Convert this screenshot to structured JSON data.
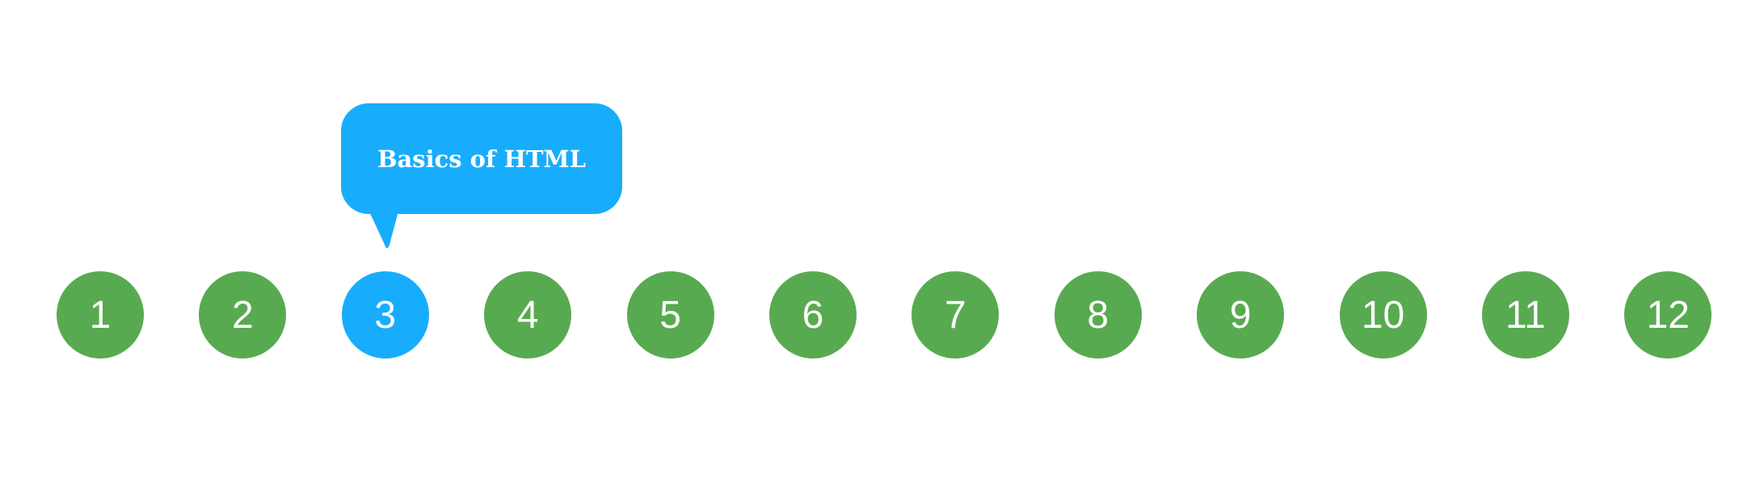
{
  "colors": {
    "step": "#58aa50",
    "active": "#18adfc",
    "text": "#ffffff"
  },
  "tooltip": {
    "text": "Basics of HTML"
  },
  "steps": [
    {
      "label": "1",
      "active": false
    },
    {
      "label": "2",
      "active": false
    },
    {
      "label": "3",
      "active": true
    },
    {
      "label": "4",
      "active": false
    },
    {
      "label": "5",
      "active": false
    },
    {
      "label": "6",
      "active": false
    },
    {
      "label": "7",
      "active": false
    },
    {
      "label": "8",
      "active": false
    },
    {
      "label": "9",
      "active": false
    },
    {
      "label": "10",
      "active": false
    },
    {
      "label": "11",
      "active": false
    },
    {
      "label": "12",
      "active": false
    }
  ]
}
